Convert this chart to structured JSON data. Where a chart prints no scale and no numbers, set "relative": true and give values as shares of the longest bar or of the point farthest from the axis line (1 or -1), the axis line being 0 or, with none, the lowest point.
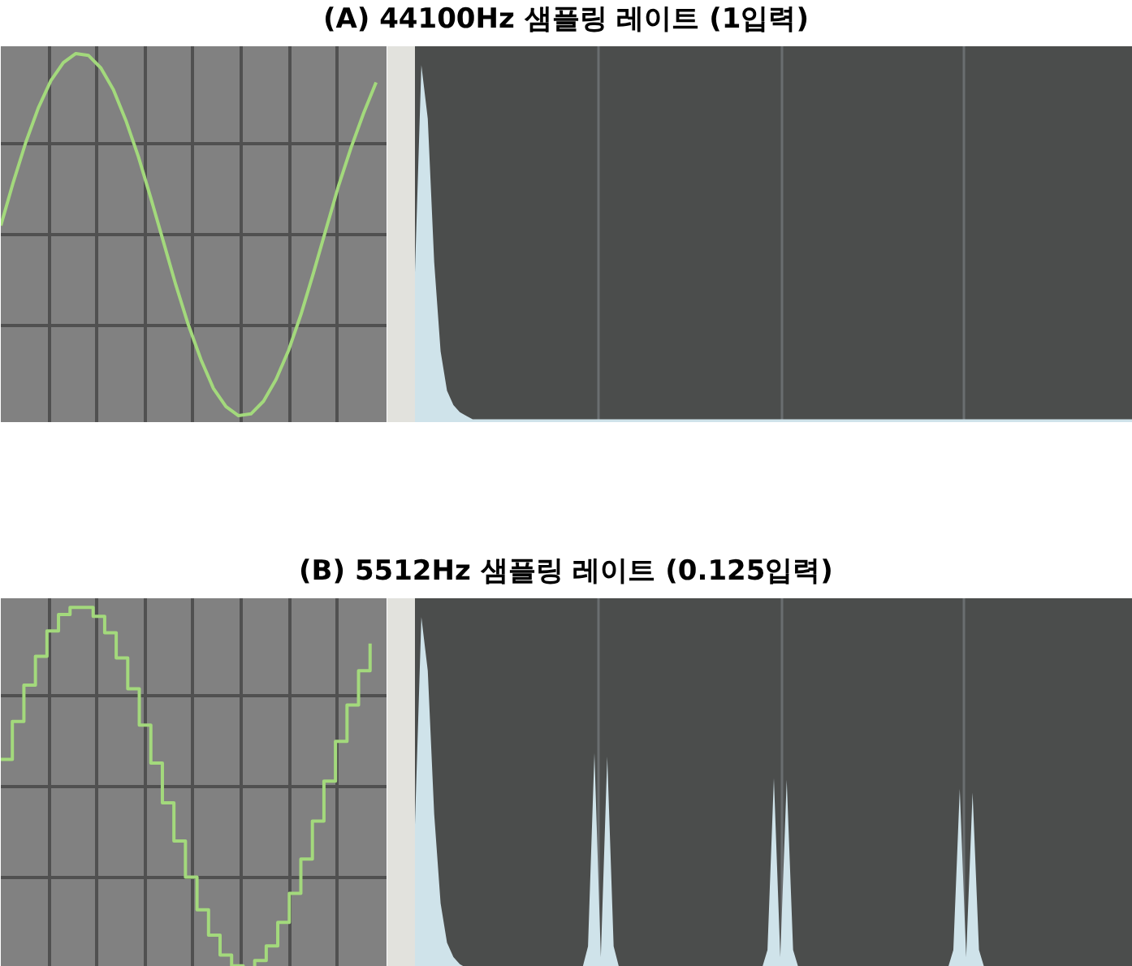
{
  "chart_data": [
    {
      "type": "line",
      "relative": true,
      "grid": true,
      "tick_labels": false,
      "categories": [
        null,
        null,
        null,
        null,
        null,
        null,
        null,
        null,
        null,
        null,
        null,
        null,
        null,
        null,
        null,
        null,
        null,
        null,
        null,
        null,
        null,
        null,
        null,
        null,
        null,
        null,
        null,
        null,
        null,
        null,
        null
      ],
      "series": [
        {
          "color": "#a3d97c",
          "values": [
            0.05,
            0.29,
            0.51,
            0.7,
            0.85,
            0.95,
            1.0,
            0.99,
            0.92,
            0.8,
            0.63,
            0.43,
            0.2,
            -0.04,
            -0.28,
            -0.5,
            -0.69,
            -0.85,
            -0.95,
            -1.0,
            -0.99,
            -0.92,
            -0.8,
            -0.64,
            -0.44,
            -0.21,
            0.03,
            0.27,
            0.48,
            0.67,
            0.84
          ]
        }
      ]
    },
    {
      "type": "area",
      "title": "(A) 44100Hz 샘플링 레이트  (1입력)",
      "relative": true,
      "grid": "x",
      "tick_labels": false,
      "categories": [
        null,
        null,
        null,
        null,
        null,
        null,
        null,
        null,
        null,
        null,
        null,
        null,
        null,
        null,
        null,
        null,
        null,
        null,
        null,
        null,
        null,
        null,
        null,
        null,
        null,
        null,
        null,
        null,
        null,
        null,
        null,
        null,
        null,
        null,
        null,
        null,
        null,
        null,
        null,
        null,
        null,
        null,
        null,
        null,
        null,
        null,
        null,
        null,
        null,
        null,
        null,
        null,
        null,
        null,
        null,
        null,
        null,
        null,
        null,
        null,
        null,
        null,
        null,
        null,
        null,
        null,
        null,
        null,
        null,
        null,
        null,
        null,
        null,
        null,
        null,
        null,
        null,
        null,
        null,
        null,
        null,
        null,
        null,
        null,
        null,
        null,
        null,
        null,
        null,
        null,
        null,
        null,
        null,
        null,
        null,
        null,
        null,
        null,
        null,
        null,
        null,
        null,
        null,
        null,
        null,
        null,
        null,
        null,
        null,
        null,
        null,
        null,
        null
      ],
      "series": [
        {
          "color": "#cfe3ea",
          "values": [
            0.42,
            1.0,
            0.85,
            0.45,
            0.2,
            0.09,
            0.05,
            0.03,
            0.02,
            0.01,
            0.01,
            0.01,
            0.01,
            0.01,
            0.01,
            0.01,
            0.01,
            0.01,
            0.01,
            0.01,
            0.01,
            0.01,
            0.01,
            0.01,
            0.01,
            0.01,
            0.01,
            0.01,
            0.01,
            0.01,
            0.01,
            0.01,
            0.01,
            0.01,
            0.01,
            0.01,
            0.01,
            0.01,
            0.01,
            0.01,
            0.01,
            0.01,
            0.01,
            0.01,
            0.01,
            0.01,
            0.01,
            0.01,
            0.01,
            0.01,
            0.01,
            0.01,
            0.01,
            0.01,
            0.01,
            0.01,
            0.01,
            0.01,
            0.01,
            0.01,
            0.01,
            0.01,
            0.01,
            0.01,
            0.01,
            0.01,
            0.01,
            0.01,
            0.01,
            0.01,
            0.01,
            0.01,
            0.01,
            0.01,
            0.01,
            0.01,
            0.01,
            0.01,
            0.01,
            0.01,
            0.01,
            0.01,
            0.01,
            0.01,
            0.01,
            0.01,
            0.01,
            0.01,
            0.01,
            0.01,
            0.01,
            0.01,
            0.01,
            0.01,
            0.01,
            0.01,
            0.01,
            0.01,
            0.01,
            0.01,
            0.01,
            0.01,
            0.01,
            0.01,
            0.01,
            0.01,
            0.01,
            0.01,
            0.01,
            0.01,
            0.01,
            0.01,
            0.01
          ]
        }
      ]
    },
    {
      "type": "step",
      "relative": true,
      "grid": true,
      "tick_labels": false,
      "categories": [
        null,
        null,
        null,
        null,
        null,
        null,
        null,
        null,
        null,
        null,
        null,
        null,
        null,
        null,
        null,
        null,
        null,
        null,
        null,
        null,
        null,
        null,
        null,
        null,
        null,
        null,
        null,
        null,
        null,
        null,
        null,
        null,
        null
      ],
      "series": [
        {
          "color": "#a3d97c",
          "values": [
            0.15,
            0.36,
            0.56,
            0.72,
            0.86,
            0.95,
            0.99,
            0.99,
            0.94,
            0.85,
            0.71,
            0.54,
            0.34,
            0.13,
            -0.09,
            -0.3,
            -0.5,
            -0.68,
            -0.82,
            -0.93,
            -0.99,
            -1.0,
            -0.96,
            -0.88,
            -0.75,
            -0.59,
            -0.4,
            -0.19,
            0.03,
            0.25,
            0.45,
            0.64,
            0.79
          ]
        }
      ]
    },
    {
      "type": "area",
      "relative": true,
      "grid": "x",
      "tick_labels": false,
      "categories": [
        null,
        null,
        null,
        null,
        null,
        null,
        null,
        null,
        null,
        null,
        null,
        null,
        null,
        null,
        null,
        null,
        null,
        null,
        null,
        null,
        null,
        null,
        null,
        null,
        null,
        null,
        null,
        null,
        null,
        null,
        null,
        null,
        null,
        null,
        null,
        null,
        null,
        null,
        null,
        null,
        null,
        null,
        null,
        null,
        null,
        null,
        null,
        null,
        null,
        null,
        null,
        null,
        null,
        null,
        null,
        null,
        null,
        null,
        null,
        null,
        null,
        null,
        null,
        null,
        null,
        null,
        null,
        null,
        null,
        null,
        null,
        null,
        null,
        null,
        null,
        null,
        null,
        null,
        null,
        null,
        null,
        null,
        null,
        null,
        null,
        null,
        null,
        null,
        null,
        null,
        null,
        null,
        null,
        null,
        null,
        null,
        null,
        null,
        null,
        null,
        null,
        null,
        null,
        null,
        null,
        null,
        null,
        null,
        null,
        null,
        null,
        null,
        null
      ],
      "title": "(B) 5512Hz 샘플링 레이트  (0.125입력)",
      "series": [
        {
          "color": "#cfe3ea",
          "values": [
            0.42,
            1.0,
            0.85,
            0.45,
            0.2,
            0.09,
            0.05,
            0.03,
            0.02,
            0.01,
            0.01,
            0.01,
            0.01,
            0.01,
            0.01,
            0.01,
            0.01,
            0.01,
            0.01,
            0.01,
            0.01,
            0.01,
            0.01,
            0.01,
            0.01,
            0.01,
            0.01,
            0.08,
            0.62,
            0.05,
            0.61,
            0.08,
            0.01,
            0.01,
            0.01,
            0.01,
            0.01,
            0.01,
            0.01,
            0.01,
            0.01,
            0.01,
            0.01,
            0.01,
            0.01,
            0.01,
            0.01,
            0.01,
            0.01,
            0.01,
            0.01,
            0.01,
            0.01,
            0.01,
            0.01,
            0.07,
            0.55,
            0.05,
            0.545,
            0.07,
            0.01,
            0.01,
            0.01,
            0.01,
            0.01,
            0.01,
            0.01,
            0.01,
            0.01,
            0.01,
            0.01,
            0.01,
            0.01,
            0.01,
            0.01,
            0.01,
            0.01,
            0.01,
            0.01,
            0.01,
            0.01,
            0.01,
            0.01,
            0.01,
            0.07,
            0.52,
            0.05,
            0.51,
            0.07,
            0.01,
            0.01,
            0.01,
            0.01,
            0.01,
            0.01,
            0.01,
            0.01,
            0.01,
            0.01,
            0.01,
            0.01,
            0.01,
            0.01,
            0.01,
            0.01,
            0.01,
            0.01,
            0.01,
            0.01,
            0.01,
            0.01,
            0.01,
            0.01
          ]
        }
      ]
    }
  ]
}
